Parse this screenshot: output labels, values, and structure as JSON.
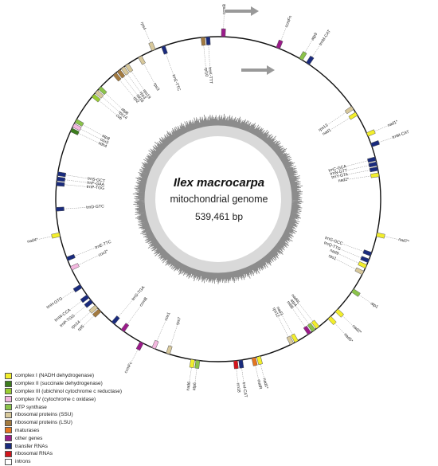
{
  "genome": {
    "species": "Ilex macrocarpa",
    "type_label": "mitochondrial genome",
    "size_label": "539,461 bp"
  },
  "colors": {
    "complex_I": "#f2ee2c",
    "complex_II": "#3d7d1d",
    "complex_III": "#9acd32",
    "complex_IV": "#f3b7df",
    "atp": "#8bc34a",
    "rps": "#d8c99c",
    "rpl": "#a37a3f",
    "mat": "#e5761f",
    "other": "#9b1b8a",
    "trna": "#1a2b7d",
    "rrna": "#d3151c",
    "intron": "#ffffff",
    "gc_dark": "#8c8c8c",
    "gc_light": "#d9d9d9"
  },
  "legend": [
    {
      "label": "complex I (NADH dehydrogenase)",
      "color": "#f2ee2c"
    },
    {
      "label": "complex II (succinate dehydrogenase)",
      "color": "#3d7d1d"
    },
    {
      "label": "complex III (ubichinol cytochrome c reductase)",
      "color": "#9acd32"
    },
    {
      "label": "complex IV (cytochrome c oxidase)",
      "color": "#f3b7df"
    },
    {
      "label": "ATP synthase",
      "color": "#8bc34a"
    },
    {
      "label": "ribosomal proteins (SSU)",
      "color": "#d8c99c"
    },
    {
      "label": "ribosomal proteins (LSU)",
      "color": "#a37a3f"
    },
    {
      "label": "maturases",
      "color": "#e5761f"
    },
    {
      "label": "other genes",
      "color": "#9b1b8a"
    },
    {
      "label": "transfer RNAs",
      "color": "#1a2b7d"
    },
    {
      "label": "ribosomal RNAs",
      "color": "#d3151c"
    },
    {
      "label": "introns",
      "color": "#ffffff"
    }
  ],
  "genes": [
    {
      "name": "ccmB",
      "pos": 0.005,
      "outside": true,
      "cls": "other"
    },
    {
      "name": "rps4",
      "pos": 0.935,
      "outside": true,
      "cls": "rps"
    },
    {
      "name": "ccmFn",
      "pos": 0.06,
      "outside": true,
      "cls": "other"
    },
    {
      "name": "atp9",
      "pos": 0.085,
      "outside": true,
      "cls": "atp"
    },
    {
      "name": "trnM-CAT",
      "pos": 0.093,
      "outside": true,
      "cls": "trna"
    },
    {
      "name": "rps13",
      "pos": 0.155,
      "outside": false,
      "cls": "rps"
    },
    {
      "name": "nad1",
      "pos": 0.162,
      "outside": false,
      "cls": "complex_I"
    },
    {
      "name": "nad1*",
      "pos": 0.185,
      "outside": true,
      "cls": "complex_I"
    },
    {
      "name": "trnM-CAT",
      "pos": 0.196,
      "outside": true,
      "cls": "trna"
    },
    {
      "name": "trnC-GCA",
      "pos": 0.21,
      "outside": false,
      "cls": "trna"
    },
    {
      "name": "trnN-GTT",
      "pos": 0.215,
      "outside": false,
      "cls": "trna"
    },
    {
      "name": "trnY-GTA",
      "pos": 0.22,
      "outside": false,
      "cls": "trna"
    },
    {
      "name": "nad2*",
      "pos": 0.226,
      "outside": false,
      "cls": "complex_I"
    },
    {
      "name": "nad7*",
      "pos": 0.285,
      "outside": true,
      "cls": "complex_I"
    },
    {
      "name": "trnG-GCC",
      "pos": 0.305,
      "outside": false,
      "cls": "trna"
    },
    {
      "name": "trnQ-TTG",
      "pos": 0.312,
      "outside": false,
      "cls": "trna"
    },
    {
      "name": "nad9",
      "pos": 0.318,
      "outside": false,
      "cls": "complex_I"
    },
    {
      "name": "rps1",
      "pos": 0.325,
      "outside": false,
      "cls": "rps"
    },
    {
      "name": "atp1",
      "pos": 0.345,
      "outside": true,
      "cls": "atp"
    },
    {
      "name": "nad2*",
      "pos": 0.37,
      "outside": true,
      "cls": "complex_I"
    },
    {
      "name": "nad5*",
      "pos": 0.38,
      "outside": true,
      "cls": "complex_I"
    },
    {
      "name": "nad4L",
      "pos": 0.395,
      "outside": false,
      "cls": "complex_I"
    },
    {
      "name": "atp4",
      "pos": 0.4,
      "outside": false,
      "cls": "atp"
    },
    {
      "name": "mttB",
      "pos": 0.405,
      "outside": false,
      "cls": "other"
    },
    {
      "name": "nad3",
      "pos": 0.42,
      "outside": false,
      "cls": "complex_I"
    },
    {
      "name": "rps12",
      "pos": 0.425,
      "outside": false,
      "cls": "rps"
    },
    {
      "name": "nad1*",
      "pos": 0.46,
      "outside": true,
      "cls": "complex_I"
    },
    {
      "name": "matR",
      "pos": 0.465,
      "outside": true,
      "cls": "mat"
    },
    {
      "name": "trnI-CAT",
      "pos": 0.478,
      "outside": true,
      "cls": "trna"
    },
    {
      "name": "rrn18",
      "pos": 0.483,
      "outside": true,
      "cls": "rrna"
    },
    {
      "name": "atp6",
      "pos": 0.52,
      "outside": true,
      "cls": "atp"
    },
    {
      "name": "nad6",
      "pos": 0.525,
      "outside": true,
      "cls": "complex_I"
    },
    {
      "name": "rps7",
      "pos": 0.55,
      "outside": false,
      "cls": "rps"
    },
    {
      "name": "cox1",
      "pos": 0.565,
      "outside": false,
      "cls": "complex_IV"
    },
    {
      "name": "ccmFc",
      "pos": 0.578,
      "outside": true,
      "cls": "other"
    },
    {
      "name": "ccmB",
      "pos": 0.6,
      "outside": false,
      "cls": "other"
    },
    {
      "name": "trnS-TGA",
      "pos": 0.612,
      "outside": false,
      "cls": "trna"
    },
    {
      "name": "rpl5",
      "pos": 0.63,
      "outside": true,
      "cls": "rpl"
    },
    {
      "name": "rps14",
      "pos": 0.635,
      "outside": true,
      "cls": "rps"
    },
    {
      "name": "trnP-TGG",
      "pos": 0.642,
      "outside": true,
      "cls": "trna"
    },
    {
      "name": "trnW-CCA",
      "pos": 0.648,
      "outside": true,
      "cls": "trna"
    },
    {
      "name": "trnH-GTG",
      "pos": 0.66,
      "outside": true,
      "cls": "trna"
    },
    {
      "name": "cox2*",
      "pos": 0.68,
      "outside": false,
      "cls": "complex_IV"
    },
    {
      "name": "trnE-TTC",
      "pos": 0.69,
      "outside": false,
      "cls": "trna"
    },
    {
      "name": "nad4*",
      "pos": 0.715,
      "outside": true,
      "cls": "complex_I"
    },
    {
      "name": "trnD-GTC",
      "pos": 0.74,
      "outside": false,
      "cls": "trna"
    },
    {
      "name": "trnP-TGG",
      "pos": 0.765,
      "outside": false,
      "cls": "trna"
    },
    {
      "name": "trnF-GAA",
      "pos": 0.77,
      "outside": false,
      "cls": "trna"
    },
    {
      "name": "trnS-GCT",
      "pos": 0.775,
      "outside": false,
      "cls": "trna"
    },
    {
      "name": "sdh4",
      "pos": 0.82,
      "outside": false,
      "cls": "complex_II"
    },
    {
      "name": "cox3",
      "pos": 0.825,
      "outside": false,
      "cls": "complex_IV"
    },
    {
      "name": "atp8",
      "pos": 0.83,
      "outside": false,
      "cls": "atp"
    },
    {
      "name": "cob",
      "pos": 0.86,
      "outside": false,
      "cls": "complex_III"
    },
    {
      "name": "rps14",
      "pos": 0.865,
      "outside": false,
      "cls": "rps"
    },
    {
      "name": "atp8",
      "pos": 0.87,
      "outside": false,
      "cls": "atp"
    },
    {
      "name": "rpl2",
      "pos": 0.89,
      "outside": false,
      "cls": "rpl"
    },
    {
      "name": "rpl16",
      "pos": 0.895,
      "outside": false,
      "cls": "rpl"
    },
    {
      "name": "rps3",
      "pos": 0.9,
      "outside": false,
      "cls": "rps"
    },
    {
      "name": "rps19",
      "pos": 0.905,
      "outside": false,
      "cls": "rps"
    },
    {
      "name": "rps3",
      "pos": 0.92,
      "outside": false,
      "cls": "rps"
    },
    {
      "name": "trnE-TTC",
      "pos": 0.945,
      "outside": false,
      "cls": "trna"
    },
    {
      "name": "rpl10",
      "pos": 0.985,
      "outside": false,
      "cls": "rpl"
    },
    {
      "name": "trnK-TTT",
      "pos": 0.99,
      "outside": false,
      "cls": "trna"
    }
  ]
}
